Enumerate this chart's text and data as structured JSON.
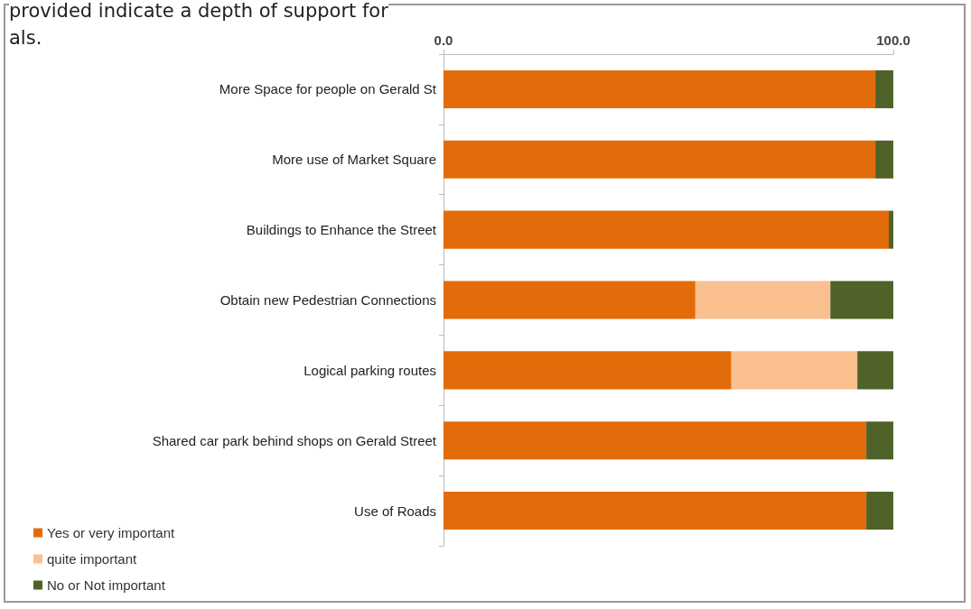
{
  "chart_data": {
    "type": "bar",
    "orientation": "horizontal",
    "stacked": true,
    "annotations": [
      "provided indicate a depth of support for",
      "als."
    ],
    "categories": [
      "More Space for people on Gerald St",
      "More use of Market Square",
      "Buildings to Enhance the Street",
      "Obtain new Pedestrian Connections",
      "Logical parking routes",
      "Shared car park behind shops on Gerald Street",
      "Use of Roads"
    ],
    "series": [
      {
        "name": "Yes or very important",
        "color": "#e36c0a",
        "values": [
          96,
          96,
          99,
          56,
          64,
          94,
          94
        ]
      },
      {
        "name": "quite important",
        "color": "#fac090",
        "values": [
          0,
          0,
          0,
          30,
          28,
          0,
          0
        ]
      },
      {
        "name": "No or Not important",
        "color": "#4f6228",
        "values": [
          4,
          4,
          1,
          14,
          8,
          6,
          6
        ]
      }
    ],
    "xlim": [
      0,
      100
    ],
    "xticks": [
      {
        "value": 0,
        "label": "0.0"
      },
      {
        "value": 100,
        "label": "100.0"
      }
    ],
    "grid": false,
    "legend": "bottom left"
  }
}
